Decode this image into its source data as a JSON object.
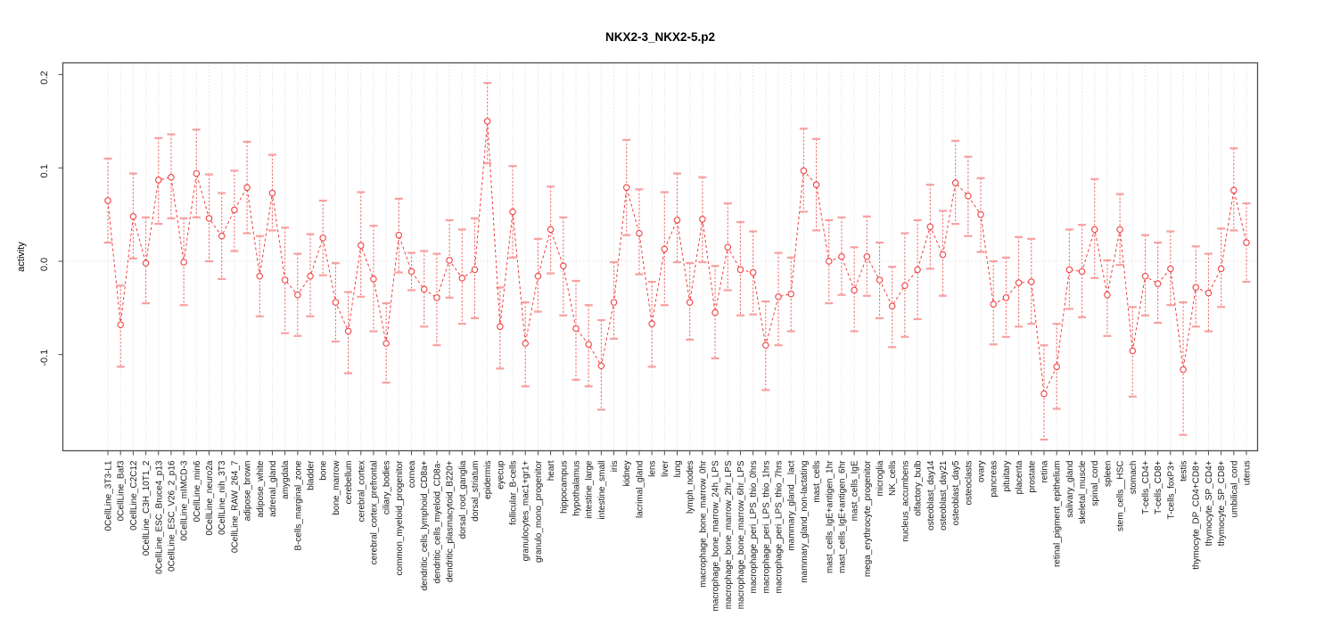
{
  "figure": {
    "title": "NKX2-3_NKX2-5.p2",
    "ylabel": "activity"
  },
  "chart_data": {
    "type": "line",
    "title": "NKX2-3_NKX2-5.p2",
    "xlabel": "",
    "ylabel": "activity",
    "ylim": [
      -0.2,
      0.212
    ],
    "yticks": [
      -0.1,
      0.0,
      0.1,
      0.2
    ],
    "ytick_labels": [
      "-0.1",
      "0.0",
      "0.1",
      "0.2"
    ],
    "grid": "dotted vertical line per category plus dotted zero line",
    "legend_position": "none",
    "marker": "open-circle",
    "line_style": "dashed",
    "error_bars": true,
    "colors": {
      "series": "#f04141",
      "error_bar_line": "#f26a6a",
      "error_bar_cap": "#f7a0a0",
      "grid": "#d8d8d8",
      "box": "#4d4d4d",
      "text": "#1a1a1a",
      "background": "#ffffff"
    },
    "categories": [
      "0CellLine_3T3-L1",
      "0CellLine_Baf3",
      "0CellLine_C2C12",
      "0CellLine_C3H_10T1_2",
      "0CellLine_ESC_Bruce4_p13",
      "0CellLine_ESC_V26_2_p16",
      "0CellLine_mIMCD-3",
      "0CellLine_min6",
      "0CellLine_neuro2a",
      "0CellLine_nih_3T3",
      "0CellLine_RAW_264_7",
      "adipose_brown",
      "adipose_white",
      "adrenal_gland",
      "amygdala",
      "B-cells_marginal_zone",
      "bladder",
      "bone",
      "bone_marrow",
      "cerebellum",
      "cerebral_cortex",
      "cerebral_cortex_prefrontal",
      "ciliary_bodies",
      "common_myeloid_progenitor",
      "cornea",
      "dendritic_cells_lymphoid_CD8a+",
      "dendritic_cells_myeloid_CD8a-",
      "dendritic_plasmacytoid_B220+",
      "dorsal_root_ganglia",
      "dorsal_striatum",
      "epidermis",
      "eyecup",
      "follicular_B-cells",
      "granulocytes_mac1+gr1+",
      "granulo_mono_progenitor",
      "heart",
      "hippocampus",
      "hypothalamus",
      "intestine_large",
      "intestine_small",
      "iris",
      "kidney",
      "lacrimal_gland",
      "lens",
      "liver",
      "lung",
      "lymph_nodes",
      "macrophage_bone_marrow_0hr",
      "macrophage_bone_marrow_24h_LPS",
      "macrophage_bone_marrow_2hr_LPS",
      "macrophage_bone_marrow_6hr_LPS",
      "macrophage_peri_LPS_thio_0hrs",
      "macrophage_peri_LPS_thio_1hrs",
      "macrophage_peri_LPS_thio_7hrs",
      "mammary_gland__lact",
      "mammary_gland_non-lactating",
      "mast_cells",
      "mast_cells_IgE+antigen_1hr",
      "mast_cells_IgE+antigen_6hr",
      "mast_cells_IgE",
      "mega_erythrocyte_progenitor",
      "microglia",
      "NK_cells",
      "nucleus_accumbens",
      "olfactory_bulb",
      "osteoblast_day14",
      "osteoblast_day21",
      "osteoblast_day5",
      "osteoclasts",
      "ovary",
      "pancreas",
      "pituitary",
      "placenta",
      "prostate",
      "retina",
      "retinal_pigment_epithelium",
      "salivary_gland",
      "skeletal_muscle",
      "spinal_cord",
      "spleen",
      "stem_cells__HSC",
      "stomach",
      "T-cells_CD4+",
      "T-cells_CD8+",
      "T-cells_foxP3+",
      "testis",
      "thymocyte_DP_CD4+CD8+",
      "thymocyte_SP_CD4+",
      "thymocyte_SP_CD8+",
      "umbilical_cord",
      "uterus"
    ],
    "series": [
      {
        "name": "activity",
        "values": [
          0.065,
          -0.068,
          0.048,
          -0.002,
          0.087,
          0.09,
          -0.001,
          0.094,
          0.046,
          0.027,
          0.055,
          0.079,
          -0.016,
          0.073,
          -0.02,
          -0.036,
          -0.016,
          0.025,
          -0.044,
          -0.075,
          0.017,
          -0.019,
          -0.088,
          0.028,
          -0.011,
          -0.03,
          -0.039,
          0.001,
          -0.018,
          -0.009,
          0.15,
          -0.07,
          0.053,
          -0.088,
          -0.016,
          0.034,
          -0.005,
          -0.072,
          -0.089,
          -0.112,
          -0.044,
          0.079,
          0.03,
          -0.067,
          0.013,
          0.044,
          -0.044,
          0.045,
          -0.055,
          0.015,
          -0.009,
          -0.012,
          -0.09,
          -0.038,
          -0.035,
          0.097,
          0.082,
          0.0,
          0.005,
          -0.031,
          0.005,
          -0.02,
          -0.048,
          -0.026,
          -0.009,
          0.037,
          0.007,
          0.084,
          0.07,
          0.05,
          -0.046,
          -0.039,
          -0.023,
          -0.022,
          -0.142,
          -0.113,
          -0.009,
          -0.011,
          0.034,
          -0.036,
          0.034,
          -0.096,
          -0.016,
          -0.024,
          -0.008,
          -0.116,
          -0.028,
          -0.034,
          -0.008,
          0.076,
          0.02
        ],
        "err_low": [
          0.02,
          -0.113,
          0.003,
          -0.045,
          0.04,
          0.046,
          -0.047,
          0.047,
          0.0,
          -0.019,
          0.011,
          0.03,
          -0.059,
          0.033,
          -0.077,
          -0.08,
          -0.059,
          -0.015,
          -0.086,
          -0.12,
          -0.038,
          -0.075,
          -0.13,
          -0.012,
          -0.031,
          -0.07,
          -0.09,
          -0.039,
          -0.067,
          -0.061,
          0.105,
          -0.115,
          0.004,
          -0.134,
          -0.054,
          -0.013,
          -0.058,
          -0.127,
          -0.134,
          -0.159,
          -0.083,
          0.028,
          -0.014,
          -0.113,
          -0.047,
          -0.001,
          -0.084,
          -0.001,
          -0.104,
          -0.031,
          -0.058,
          -0.057,
          -0.138,
          -0.09,
          -0.075,
          0.053,
          0.033,
          -0.045,
          -0.036,
          -0.075,
          -0.037,
          -0.061,
          -0.092,
          -0.081,
          -0.062,
          -0.008,
          -0.037,
          0.04,
          0.027,
          0.01,
          -0.089,
          -0.081,
          -0.07,
          -0.067,
          -0.191,
          -0.158,
          -0.051,
          -0.06,
          -0.018,
          -0.08,
          -0.004,
          -0.145,
          -0.058,
          -0.066,
          -0.047,
          -0.186,
          -0.07,
          -0.075,
          -0.049,
          0.033,
          -0.022
        ],
        "err_high": [
          0.11,
          -0.026,
          0.094,
          0.047,
          0.132,
          0.136,
          0.046,
          0.141,
          0.093,
          0.073,
          0.097,
          0.128,
          0.027,
          0.114,
          0.036,
          0.008,
          0.029,
          0.065,
          -0.002,
          -0.033,
          0.074,
          0.038,
          -0.045,
          0.067,
          0.009,
          0.011,
          0.008,
          0.044,
          0.034,
          0.046,
          0.191,
          -0.028,
          0.102,
          -0.044,
          0.024,
          0.08,
          0.047,
          -0.021,
          -0.047,
          -0.063,
          -0.001,
          0.13,
          0.077,
          -0.022,
          0.074,
          0.094,
          -0.002,
          0.09,
          -0.005,
          0.062,
          0.042,
          0.032,
          -0.043,
          0.009,
          0.004,
          0.142,
          0.131,
          0.044,
          0.047,
          0.015,
          0.048,
          0.02,
          -0.006,
          0.03,
          0.044,
          0.082,
          0.054,
          0.129,
          0.112,
          0.089,
          0.0,
          0.004,
          0.026,
          0.024,
          -0.09,
          -0.067,
          0.034,
          0.039,
          0.088,
          0.001,
          0.072,
          -0.049,
          0.028,
          0.02,
          0.032,
          -0.044,
          0.016,
          0.008,
          0.035,
          0.121,
          0.062
        ]
      }
    ]
  }
}
